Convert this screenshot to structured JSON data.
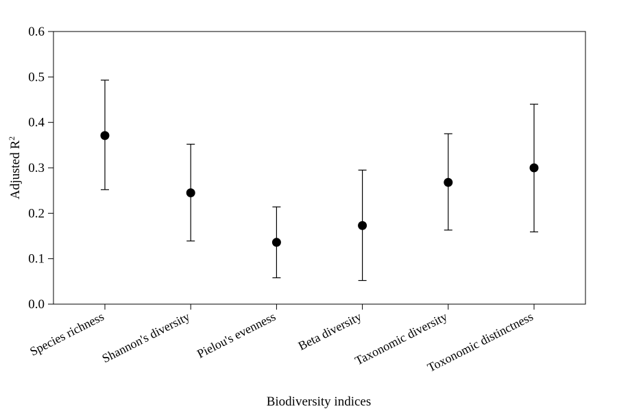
{
  "chart_data": {
    "type": "scatter",
    "title": "",
    "xlabel": "Biodiversity indices",
    "ylabel": "Adjusted R",
    "ylabel_superscript": "2",
    "ylim": [
      0.0,
      0.6
    ],
    "yticks": [
      "0.0",
      "0.1",
      "0.2",
      "0.3",
      "0.4",
      "0.5",
      "0.6"
    ],
    "ytick_values": [
      0.0,
      0.1,
      0.2,
      0.3,
      0.4,
      0.5,
      0.6
    ],
    "grid": false,
    "legend": "none",
    "categories": [
      "Species richness",
      "Shannon's diversity",
      "Pielou's evenness",
      "Beta diversity",
      "Taxonomic diversity",
      "Toxonomic distinctness"
    ],
    "series": [
      {
        "values": [
          0.371,
          0.245,
          0.136,
          0.173,
          0.268,
          0.3
        ],
        "lower": [
          0.252,
          0.139,
          0.058,
          0.052,
          0.163,
          0.159
        ],
        "upper": [
          0.493,
          0.352,
          0.214,
          0.295,
          0.375,
          0.44
        ]
      }
    ],
    "colors": {
      "marker": "#000000",
      "axis": "#000000",
      "background": "#ffffff"
    }
  }
}
